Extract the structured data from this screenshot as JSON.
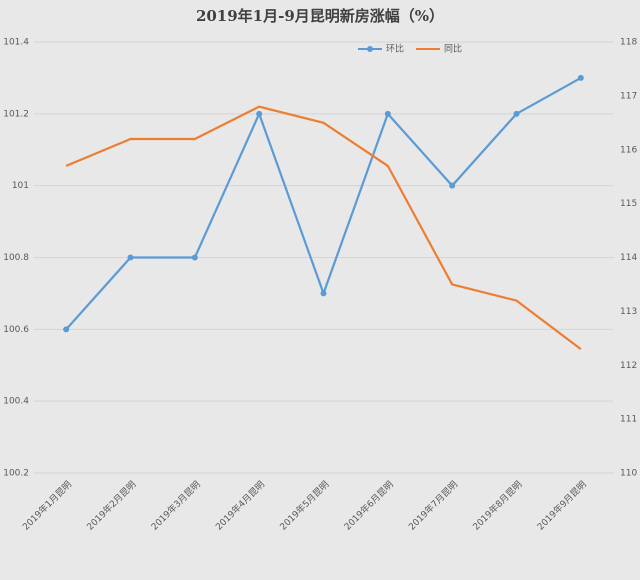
{
  "chart_data": {
    "type": "line",
    "title": "2019年1月-9月昆明新房涨幅（%）",
    "categories": [
      "2019年1月昆明",
      "2019年2月昆明",
      "2019年3月昆明",
      "2019年4月昆明",
      "2019年5月昆明",
      "2019年6月昆明",
      "2019年7月昆明",
      "2019年8月昆明",
      "2019年9月昆明"
    ],
    "series": [
      {
        "name": "环比",
        "color": "#5b9bd5",
        "values": [
          100.6,
          100.8,
          100.8,
          101.2,
          100.7,
          101.2,
          101.0,
          101.2,
          101.3
        ]
      },
      {
        "name": "同比",
        "color": "#ed7d31",
        "axis": "y2",
        "values": [
          115.7,
          116.2,
          116.2,
          116.8,
          116.5,
          115.7,
          113.5,
          113.2,
          112.3
        ]
      }
    ],
    "ylim": [
      100.2,
      101.4
    ],
    "yticks": [
      100.2,
      100.4,
      100.6,
      100.8,
      101,
      101.2,
      101.4
    ],
    "y2lim": [
      110,
      118
    ],
    "y2ticks": [
      110,
      111,
      112,
      113,
      114,
      115,
      116,
      117,
      118
    ],
    "grid": true,
    "legend": "top"
  }
}
